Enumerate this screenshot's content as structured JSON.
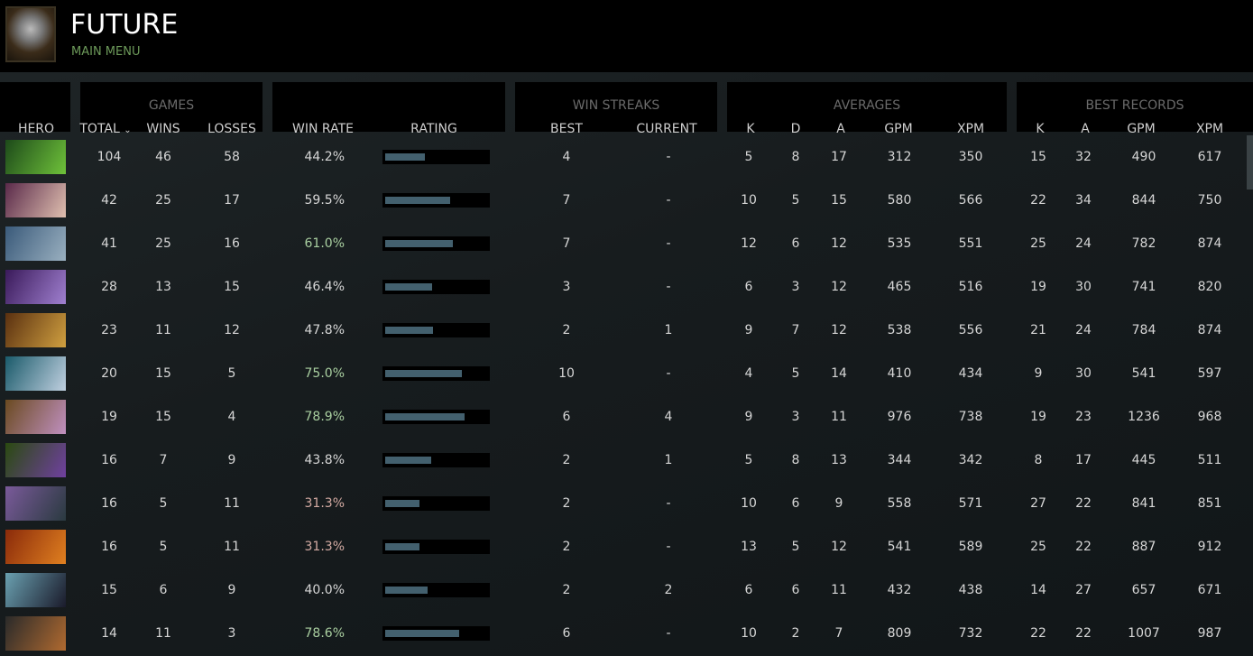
{
  "header": {
    "title": "FUTURE",
    "subtitle": "MAIN MENU"
  },
  "groups": {
    "games": "GAMES",
    "win_streaks": "WIN STREAKS",
    "averages": "AVERAGES",
    "best_records": "BEST RECORDS"
  },
  "columns": {
    "hero": "HERO",
    "total": "TOTAL",
    "sort_icon": "⌄",
    "wins": "WINS",
    "losses": "LOSSES",
    "win_rate": "WIN RATE",
    "rating": "RATING",
    "best": "BEST",
    "current": "CURRENT",
    "avg_k": "K",
    "avg_d": "D",
    "avg_a": "A",
    "avg_gpm": "GPM",
    "avg_xpm": "XPM",
    "best_k": "K",
    "best_a": "A",
    "best_gpm": "GPM",
    "best_xpm": "XPM"
  },
  "colors": {
    "win_high": "#a9cfa0",
    "win_low": "#d3aaa2",
    "win_mid": "#d6d6d6",
    "bar": "#43606e"
  },
  "rows": [
    {
      "portrait": [
        "#1d4a1a",
        "#6fc23a"
      ],
      "total": "104",
      "wins": "46",
      "losses": "58",
      "win_rate": "44.2%",
      "rating": 0.39,
      "best": "4",
      "current": "-",
      "k": "5",
      "d": "8",
      "a": "17",
      "gpm": "312",
      "xpm": "350",
      "bk": "15",
      "ba": "32",
      "bgpm": "490",
      "bxpm": "617"
    },
    {
      "portrait": [
        "#5a2a4a",
        "#e0c0b0"
      ],
      "total": "42",
      "wins": "25",
      "losses": "17",
      "win_rate": "59.5%",
      "rating": 0.64,
      "best": "7",
      "current": "-",
      "k": "10",
      "d": "5",
      "a": "15",
      "gpm": "580",
      "xpm": "566",
      "bk": "22",
      "ba": "34",
      "bgpm": "844",
      "bxpm": "750"
    },
    {
      "portrait": [
        "#3a5a7a",
        "#9ab0c0"
      ],
      "total": "41",
      "wins": "25",
      "losses": "16",
      "win_rate": "61.0%",
      "rating": 0.66,
      "best": "7",
      "current": "-",
      "k": "12",
      "d": "6",
      "a": "12",
      "gpm": "535",
      "xpm": "551",
      "bk": "25",
      "ba": "24",
      "bgpm": "782",
      "bxpm": "874"
    },
    {
      "portrait": [
        "#3a1a5a",
        "#a080d0"
      ],
      "total": "28",
      "wins": "13",
      "losses": "15",
      "win_rate": "46.4%",
      "rating": 0.46,
      "best": "3",
      "current": "-",
      "k": "6",
      "d": "3",
      "a": "12",
      "gpm": "465",
      "xpm": "516",
      "bk": "19",
      "ba": "30",
      "bgpm": "741",
      "bxpm": "820"
    },
    {
      "portrait": [
        "#5a3010",
        "#d0a040"
      ],
      "total": "23",
      "wins": "11",
      "losses": "12",
      "win_rate": "47.8%",
      "rating": 0.47,
      "best": "2",
      "current": "1",
      "k": "9",
      "d": "7",
      "a": "12",
      "gpm": "538",
      "xpm": "556",
      "bk": "21",
      "ba": "24",
      "bgpm": "784",
      "bxpm": "874"
    },
    {
      "portrait": [
        "#1a5a6a",
        "#c0d0e0"
      ],
      "total": "20",
      "wins": "15",
      "losses": "5",
      "win_rate": "75.0%",
      "rating": 0.75,
      "best": "10",
      "current": "-",
      "k": "4",
      "d": "5",
      "a": "14",
      "gpm": "410",
      "xpm": "434",
      "bk": "9",
      "ba": "30",
      "bgpm": "541",
      "bxpm": "597"
    },
    {
      "portrait": [
        "#6a4a20",
        "#c090c0"
      ],
      "total": "19",
      "wins": "15",
      "losses": "4",
      "win_rate": "78.9%",
      "rating": 0.78,
      "best": "6",
      "current": "4",
      "k": "9",
      "d": "3",
      "a": "11",
      "gpm": "976",
      "xpm": "738",
      "bk": "19",
      "ba": "23",
      "bgpm": "1236",
      "bxpm": "968"
    },
    {
      "portrait": [
        "#2a4a10",
        "#7040a0"
      ],
      "total": "16",
      "wins": "7",
      "losses": "9",
      "win_rate": "43.8%",
      "rating": 0.45,
      "best": "2",
      "current": "1",
      "k": "5",
      "d": "8",
      "a": "13",
      "gpm": "344",
      "xpm": "342",
      "bk": "8",
      "ba": "17",
      "bgpm": "445",
      "bxpm": "511"
    },
    {
      "portrait": [
        "#7a5a9a",
        "#2a3a40"
      ],
      "total": "16",
      "wins": "5",
      "losses": "11",
      "win_rate": "31.3%",
      "rating": 0.34,
      "best": "2",
      "current": "-",
      "k": "10",
      "d": "6",
      "a": "9",
      "gpm": "558",
      "xpm": "571",
      "bk": "27",
      "ba": "22",
      "bgpm": "841",
      "bxpm": "851"
    },
    {
      "portrait": [
        "#8a2a0a",
        "#e08020"
      ],
      "total": "16",
      "wins": "5",
      "losses": "11",
      "win_rate": "31.3%",
      "rating": 0.34,
      "best": "2",
      "current": "-",
      "k": "13",
      "d": "5",
      "a": "12",
      "gpm": "541",
      "xpm": "589",
      "bk": "25",
      "ba": "22",
      "bgpm": "887",
      "bxpm": "912"
    },
    {
      "portrait": [
        "#6aa0b0",
        "#1a1a2a"
      ],
      "total": "15",
      "wins": "6",
      "losses": "9",
      "win_rate": "40.0%",
      "rating": 0.42,
      "best": "2",
      "current": "2",
      "k": "6",
      "d": "6",
      "a": "11",
      "gpm": "432",
      "xpm": "438",
      "bk": "14",
      "ba": "27",
      "bgpm": "657",
      "bxpm": "671"
    },
    {
      "portrait": [
        "#2a2a2a",
        "#b06a30"
      ],
      "total": "14",
      "wins": "11",
      "losses": "3",
      "win_rate": "78.6%",
      "rating": 0.73,
      "best": "6",
      "current": "-",
      "k": "10",
      "d": "2",
      "a": "7",
      "gpm": "809",
      "xpm": "732",
      "bk": "22",
      "ba": "22",
      "bgpm": "1007",
      "bxpm": "987"
    }
  ]
}
